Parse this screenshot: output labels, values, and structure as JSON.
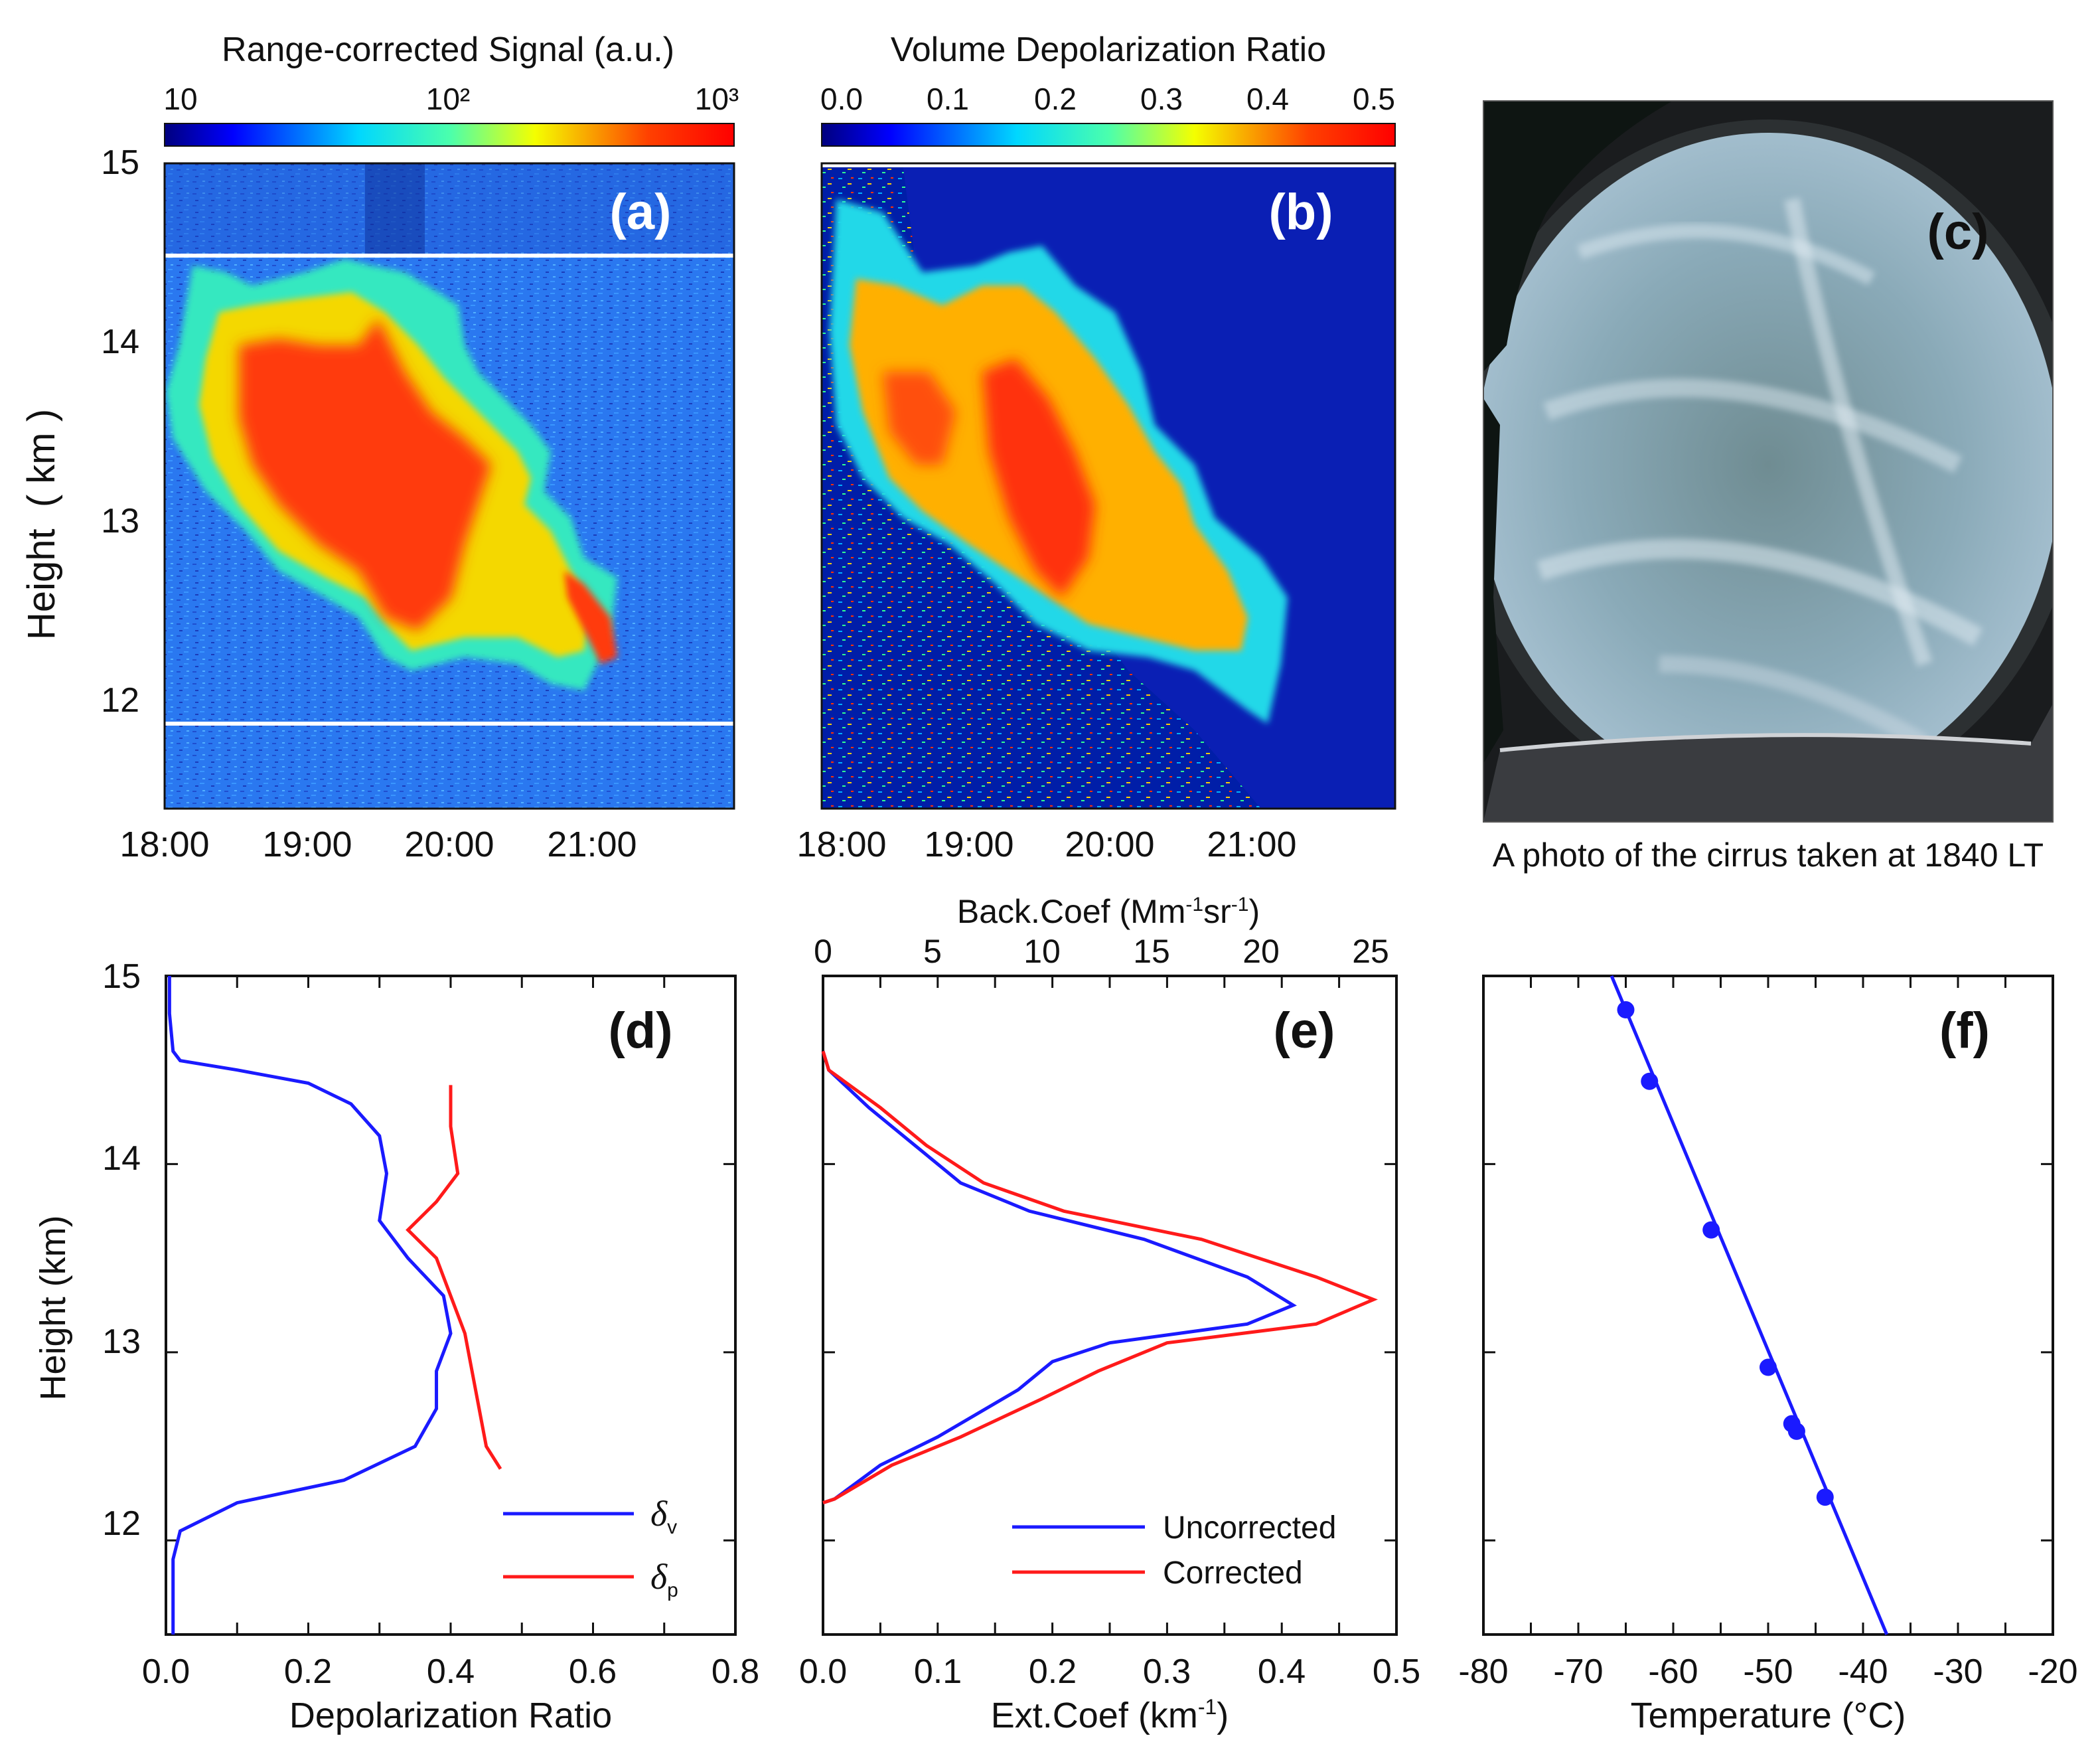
{
  "colors": {
    "blue": "#1a1aff",
    "red": "#ff1a1a",
    "axis": "#111111",
    "panel_letter": "#ffffff"
  },
  "chart_data": [
    {
      "panel": "a",
      "type": "heatmap",
      "title": "Range-corrected Signal (a.u.)",
      "colorbar_ticks": [
        "10",
        "10²",
        "10³"
      ],
      "colorbar_scale": "log",
      "colorbar_range": [
        10,
        1000
      ],
      "ylabel": "Height  ( km )",
      "yticks": [
        "12",
        "13",
        "14",
        "15"
      ],
      "ylim": [
        11.5,
        15
      ],
      "xticks": [
        "18:00",
        "19:00",
        "20:00",
        "21:00"
      ],
      "xlim_hours": [
        18,
        22
      ],
      "panel_label": "(a)",
      "reference_lines_km": [
        11.88,
        14.48
      ]
    },
    {
      "panel": "b",
      "type": "heatmap",
      "title": "Volume Depolarization Ratio",
      "colorbar_ticks": [
        "0.0",
        "0.1",
        "0.2",
        "0.3",
        "0.4",
        "0.5"
      ],
      "colorbar_range": [
        0,
        0.5
      ],
      "xticks": [
        "18:00",
        "19:00",
        "20:00",
        "21:00"
      ],
      "xlim_hours": [
        18,
        22
      ],
      "ylim": [
        11.5,
        15
      ],
      "panel_label": "(b)"
    },
    {
      "panel": "d",
      "type": "line",
      "xlabel": "Depolarization Ratio",
      "ylabel": "Height (km)",
      "xlim": [
        0,
        0.8
      ],
      "ylim": [
        11.5,
        15
      ],
      "xticks": [
        "0.0",
        "0.2",
        "0.4",
        "0.6",
        "0.8"
      ],
      "yticks": [
        "12",
        "13",
        "14",
        "15"
      ],
      "panel_label": "(d)",
      "series": [
        {
          "name": "δ",
          "subscript": "v",
          "color": "blue",
          "points": [
            [
              0.005,
              15.0
            ],
            [
              0.005,
              14.8
            ],
            [
              0.01,
              14.6
            ],
            [
              0.02,
              14.55
            ],
            [
              0.1,
              14.5
            ],
            [
              0.2,
              14.43
            ],
            [
              0.26,
              14.32
            ],
            [
              0.3,
              14.15
            ],
            [
              0.31,
              13.95
            ],
            [
              0.3,
              13.7
            ],
            [
              0.34,
              13.5
            ],
            [
              0.39,
              13.3
            ],
            [
              0.4,
              13.1
            ],
            [
              0.38,
              12.9
            ],
            [
              0.38,
              12.7
            ],
            [
              0.35,
              12.5
            ],
            [
              0.25,
              12.32
            ],
            [
              0.1,
              12.2
            ],
            [
              0.02,
              12.05
            ],
            [
              0.01,
              11.9
            ],
            [
              0.01,
              11.5
            ]
          ]
        },
        {
          "name": "δ",
          "subscript": "p",
          "color": "red",
          "points": [
            [
              0.4,
              14.42
            ],
            [
              0.4,
              14.2
            ],
            [
              0.41,
              13.95
            ],
            [
              0.38,
              13.8
            ],
            [
              0.34,
              13.65
            ],
            [
              0.38,
              13.5
            ],
            [
              0.4,
              13.3
            ],
            [
              0.42,
              13.1
            ],
            [
              0.43,
              12.9
            ],
            [
              0.44,
              12.7
            ],
            [
              0.45,
              12.5
            ],
            [
              0.47,
              12.38
            ]
          ]
        }
      ]
    },
    {
      "panel": "e",
      "type": "line",
      "xlabel": "Ext.Coef (km⁻¹)",
      "top_xlabel": "Back.Coef (Mm⁻¹sr⁻¹)",
      "xlim": [
        0,
        0.5
      ],
      "top_xlim": [
        0,
        26
      ],
      "ylim": [
        11.5,
        15
      ],
      "xticks": [
        "0.0",
        "0.1",
        "0.2",
        "0.3",
        "0.4",
        "0.5"
      ],
      "top_xticks": [
        "0",
        "5",
        "10",
        "15",
        "20",
        "25"
      ],
      "panel_label": "(e)",
      "series": [
        {
          "name": "Uncorrected",
          "color": "blue",
          "points": [
            [
              0.0,
              14.6
            ],
            [
              0.005,
              14.5
            ],
            [
              0.04,
              14.3
            ],
            [
              0.08,
              14.1
            ],
            [
              0.12,
              13.9
            ],
            [
              0.18,
              13.75
            ],
            [
              0.28,
              13.6
            ],
            [
              0.37,
              13.4
            ],
            [
              0.41,
              13.25
            ],
            [
              0.37,
              13.15
            ],
            [
              0.25,
              13.05
            ],
            [
              0.2,
              12.95
            ],
            [
              0.17,
              12.8
            ],
            [
              0.1,
              12.55
            ],
            [
              0.05,
              12.4
            ],
            [
              0.01,
              12.22
            ],
            [
              0.0,
              12.2
            ]
          ]
        },
        {
          "name": "Corrected",
          "color": "red",
          "points": [
            [
              0.0,
              14.6
            ],
            [
              0.005,
              14.5
            ],
            [
              0.05,
              14.3
            ],
            [
              0.09,
              14.1
            ],
            [
              0.14,
              13.9
            ],
            [
              0.21,
              13.75
            ],
            [
              0.33,
              13.6
            ],
            [
              0.43,
              13.4
            ],
            [
              0.48,
              13.28
            ],
            [
              0.43,
              13.15
            ],
            [
              0.3,
              13.05
            ],
            [
              0.24,
              12.9
            ],
            [
              0.19,
              12.75
            ],
            [
              0.12,
              12.55
            ],
            [
              0.06,
              12.4
            ],
            [
              0.01,
              12.22
            ],
            [
              0.0,
              12.2
            ]
          ]
        }
      ]
    },
    {
      "panel": "f",
      "type": "scatter",
      "xlabel": "Temperature (°C)",
      "xlim": [
        -80,
        -20
      ],
      "ylim": [
        11.5,
        15
      ],
      "xticks": [
        "-80",
        "-70",
        "-60",
        "-50",
        "-40",
        "-30",
        "-20"
      ],
      "panel_label": "(f)",
      "line_points": [
        [
          -66.5,
          15.0
        ],
        [
          -37.5,
          11.5
        ]
      ],
      "markers": [
        [
          -65,
          14.82
        ],
        [
          -62.5,
          14.44
        ],
        [
          -56,
          13.65
        ],
        [
          -50,
          12.92
        ],
        [
          -47.5,
          12.62
        ],
        [
          -47,
          12.58
        ],
        [
          -44,
          12.23
        ]
      ]
    }
  ],
  "photo": {
    "panel_label": "(c)",
    "caption": "A photo of the cirrus taken at 1840 LT"
  }
}
